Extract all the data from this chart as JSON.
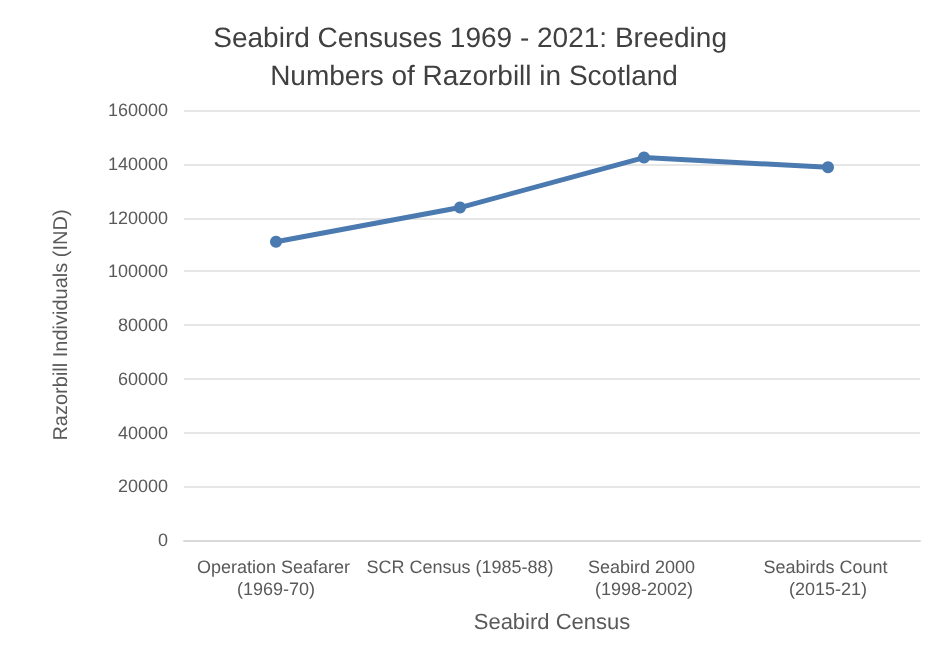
{
  "chart_data": {
    "type": "line",
    "title": "Seabird Censuses 1969 - 2021: Breeding Numbers of Razorbill in Scotland",
    "xlabel": "Seabird Census",
    "ylabel": "Razorbill Individuals (IND)",
    "categories": [
      "Operation Seafarer (1969-70)",
      "SCR Census (1985-88)",
      "Seabird 2000 (1998-2002)",
      "Seabirds Count (2015-21)"
    ],
    "series": [
      {
        "color": "#4a7ab0",
        "values": [
          111000,
          123700,
          142300,
          138700
        ]
      }
    ],
    "ylim": [
      0,
      160000
    ],
    "yticks": [
      0,
      20000,
      40000,
      60000,
      80000,
      100000,
      120000,
      140000,
      160000
    ],
    "grid": "y",
    "marker": "circle",
    "line_style": "solid"
  }
}
